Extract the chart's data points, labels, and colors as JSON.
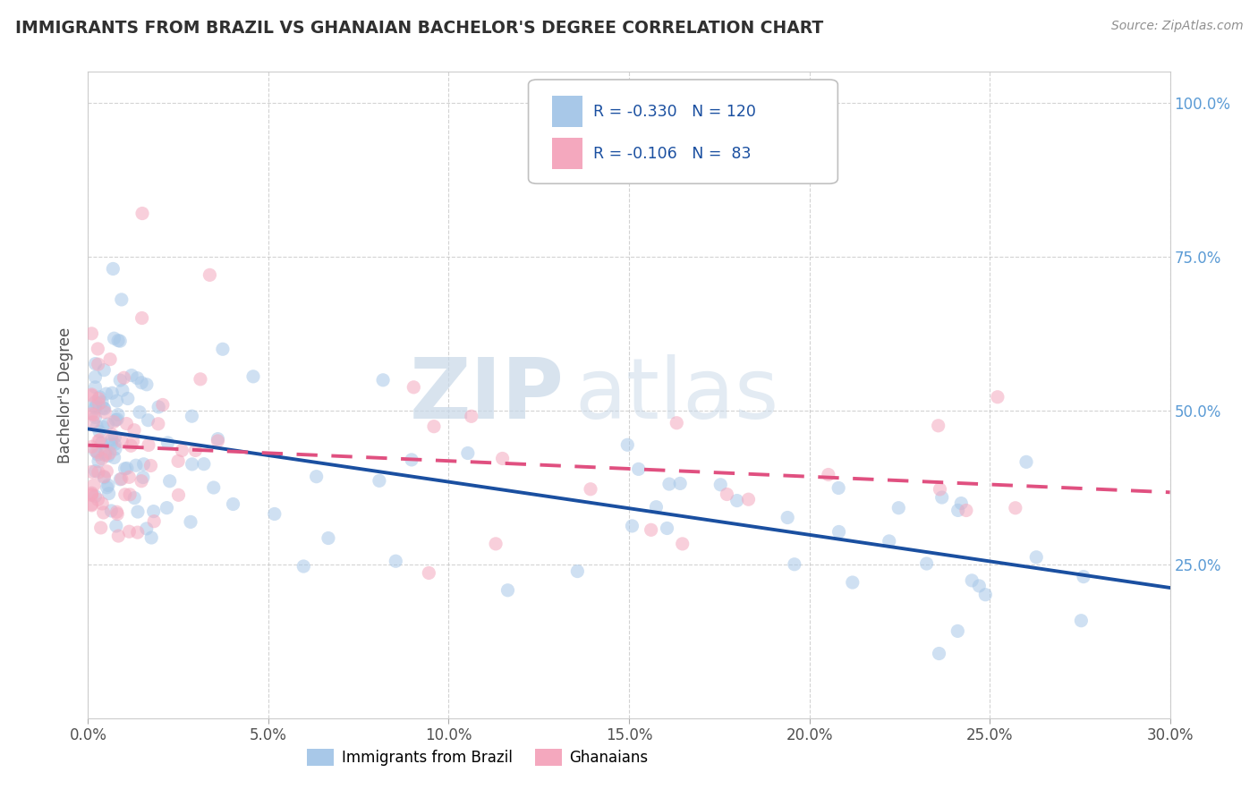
{
  "title": "IMMIGRANTS FROM BRAZIL VS GHANAIAN BACHELOR'S DEGREE CORRELATION CHART",
  "source": "Source: ZipAtlas.com",
  "ylabel": "Bachelor's Degree",
  "xlim": [
    0.0,
    0.3
  ],
  "ylim": [
    0.0,
    1.05
  ],
  "xtick_labels": [
    "0.0%",
    "5.0%",
    "10.0%",
    "15.0%",
    "20.0%",
    "25.0%",
    "30.0%"
  ],
  "xtick_vals": [
    0.0,
    0.05,
    0.1,
    0.15,
    0.2,
    0.25,
    0.3
  ],
  "ytick_labels": [
    "25.0%",
    "50.0%",
    "75.0%",
    "100.0%"
  ],
  "ytick_vals": [
    0.25,
    0.5,
    0.75,
    1.0
  ],
  "legend_r1": "-0.330",
  "legend_n1": "120",
  "legend_r2": "-0.106",
  "legend_n2": " 83",
  "color_blue": "#a8c8e8",
  "color_pink": "#f4a8be",
  "color_line_blue": "#1a4fa0",
  "color_line_pink": "#e05080",
  "watermark_zip": "ZIP",
  "watermark_atlas": "atlas",
  "background_color": "#ffffff",
  "grid_color": "#c8c8c8",
  "title_color": "#303030",
  "source_color": "#909090",
  "axis_label_color": "#5b9bd5",
  "dot_size": 120,
  "dot_alpha": 0.55,
  "line_width": 2.8
}
